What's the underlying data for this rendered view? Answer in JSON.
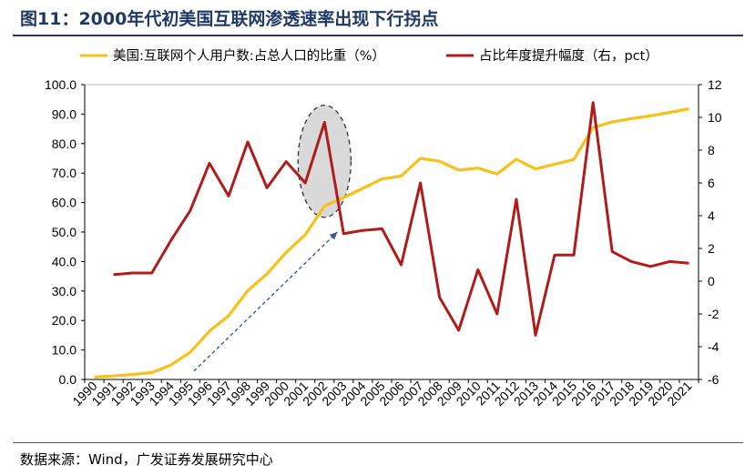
{
  "header": {
    "title": "图11：2000年代初美国互联网渗透速率出现下行拐点"
  },
  "footer": {
    "source": "数据来源：Wind，广发证券发展研究中心"
  },
  "chart_data": {
    "type": "line",
    "categories": [
      "1990",
      "1991",
      "1992",
      "1993",
      "1994",
      "1995",
      "1996",
      "1997",
      "1998",
      "1999",
      "2000",
      "2001",
      "2002",
      "2003",
      "2004",
      "2005",
      "2006",
      "2007",
      "2008",
      "2009",
      "2010",
      "2011",
      "2012",
      "2013",
      "2014",
      "2015",
      "2016",
      "2017",
      "2018",
      "2019",
      "2020",
      "2021"
    ],
    "series": [
      {
        "name": "美国:互联网个人用户数:占总人口的比重（%）",
        "axis": "left",
        "color": "#f5c21c",
        "values": [
          0.8,
          1.2,
          1.7,
          2.3,
          4.9,
          9.2,
          16.4,
          21.6,
          30.1,
          35.8,
          43.1,
          49.1,
          58.8,
          61.7,
          64.8,
          68.0,
          69.0,
          75.0,
          74.0,
          71.0,
          71.7,
          69.7,
          74.7,
          71.4,
          73.0,
          74.6,
          85.5,
          87.3,
          88.5,
          89.4,
          90.6,
          91.8
        ]
      },
      {
        "name": "占比年度提升幅度（右，pct）",
        "axis": "right",
        "color": "#b01c1c",
        "values": [
          null,
          0.4,
          0.5,
          0.5,
          2.5,
          4.3,
          7.2,
          5.2,
          8.5,
          5.7,
          7.3,
          6.0,
          9.7,
          2.9,
          3.1,
          3.2,
          1.0,
          6.0,
          -1.0,
          -3.0,
          0.7,
          -2.0,
          5.0,
          -3.3,
          1.6,
          1.6,
          10.9,
          1.8,
          1.2,
          0.9,
          1.2,
          1.1
        ]
      }
    ],
    "yleft": {
      "min": 0,
      "max": 100,
      "ticks": [
        "0.0",
        "10.0",
        "20.0",
        "30.0",
        "40.0",
        "50.0",
        "60.0",
        "70.0",
        "80.0",
        "90.0",
        "100.0"
      ]
    },
    "yright": {
      "min": -6,
      "max": 12,
      "ticks": [
        "-6",
        "-4",
        "-2",
        "0",
        "2",
        "4",
        "6",
        "8",
        "10",
        "12"
      ]
    },
    "legend_position": "top",
    "annotations": [
      {
        "type": "ellipse-highlight",
        "around_x": [
          "2001",
          "2003"
        ]
      },
      {
        "type": "dashed-arrow",
        "from_x": "1995",
        "to_x": "2002"
      }
    ]
  }
}
